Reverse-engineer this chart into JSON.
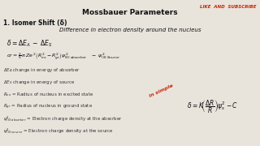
{
  "title": "Mossbauer Parameters",
  "background_color": "#e8e4dc",
  "title_color": "#111111",
  "title_fontsize": 6.5,
  "like_text": "LIKE  AND  SUBSCRIBE",
  "like_color": "#cc2200",
  "like_fontsize": 4.0,
  "section": "1. Isomer Shift (δ)",
  "section_fontsize": 5.5,
  "subtitle": "Difference in electron density around the nucleus",
  "subtitle_fontsize": 5.0,
  "eq1": "$\\delta = \\Delta E_A \\;-\\; \\Delta E_S$",
  "eq1_fontsize": 5.5,
  "eq2_fontsize": 4.5,
  "eq_simple_fontsize": 5.5,
  "in_simple_text": "in simple",
  "in_simple_color": "#cc2200",
  "in_simple_fontsize": 4.5,
  "bullets": [
    "$\\Delta E_A$ change in energy of absorber",
    "$\\Delta E_S$ change in energy of source",
    "$R_{ex}$ = Radius of nucleus in excited state",
    "$R_{gr}$ = Radius of nucleus in ground state",
    "$\\psi^2_{(0)\\,absorber}$ = Electron charge density at the absorber",
    "$\\psi^2_{(0)\\,source}$ = Electron charge density at the source"
  ],
  "bullets_fontsize": 4.0,
  "bullets_color": "#333333"
}
